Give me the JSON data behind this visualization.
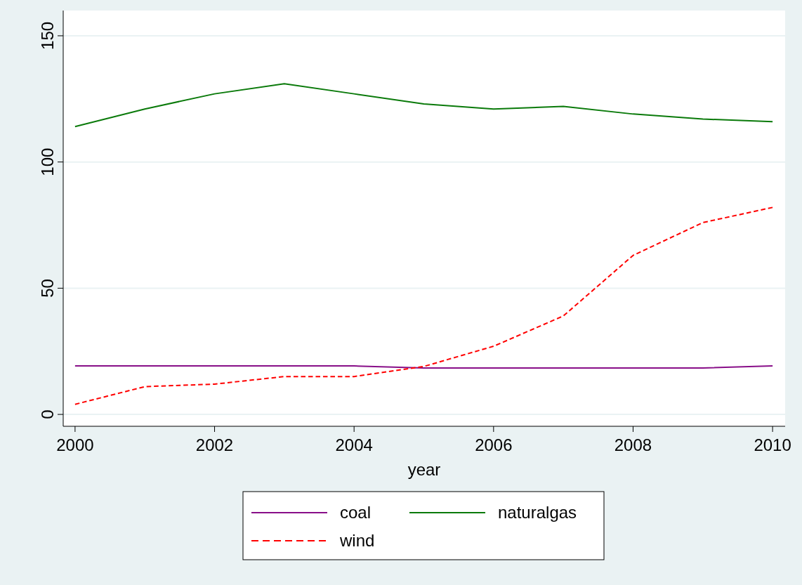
{
  "chart_data": {
    "type": "line",
    "xlabel": "year",
    "x": [
      2000,
      2001,
      2002,
      2003,
      2004,
      2005,
      2006,
      2007,
      2008,
      2009,
      2010
    ],
    "xlim": [
      1999.83,
      2010.18
    ],
    "xticks": [
      2000,
      2002,
      2004,
      2006,
      2008,
      2010
    ],
    "ylim": [
      -4.7,
      160
    ],
    "yticks": [
      0,
      50,
      100,
      150
    ],
    "grid": "y",
    "legend": "bottom",
    "marker": "none",
    "series": [
      {
        "name": "coal",
        "color": "#880e88",
        "line_style": "solid",
        "values": [
          19.2,
          19.2,
          19.2,
          19.2,
          19.2,
          18.4,
          18.4,
          18.4,
          18.4,
          18.4,
          19.2
        ]
      },
      {
        "name": "naturalgas",
        "color": "#0a7a0a",
        "line_style": "solid",
        "values": [
          114,
          121,
          127,
          131,
          127,
          123,
          121,
          122,
          119,
          117,
          116
        ]
      },
      {
        "name": "wind",
        "color": "#ff0000",
        "line_style": "dashed",
        "values": [
          4,
          11,
          12,
          15,
          15,
          19,
          27,
          39,
          63,
          76,
          82
        ]
      }
    ]
  }
}
